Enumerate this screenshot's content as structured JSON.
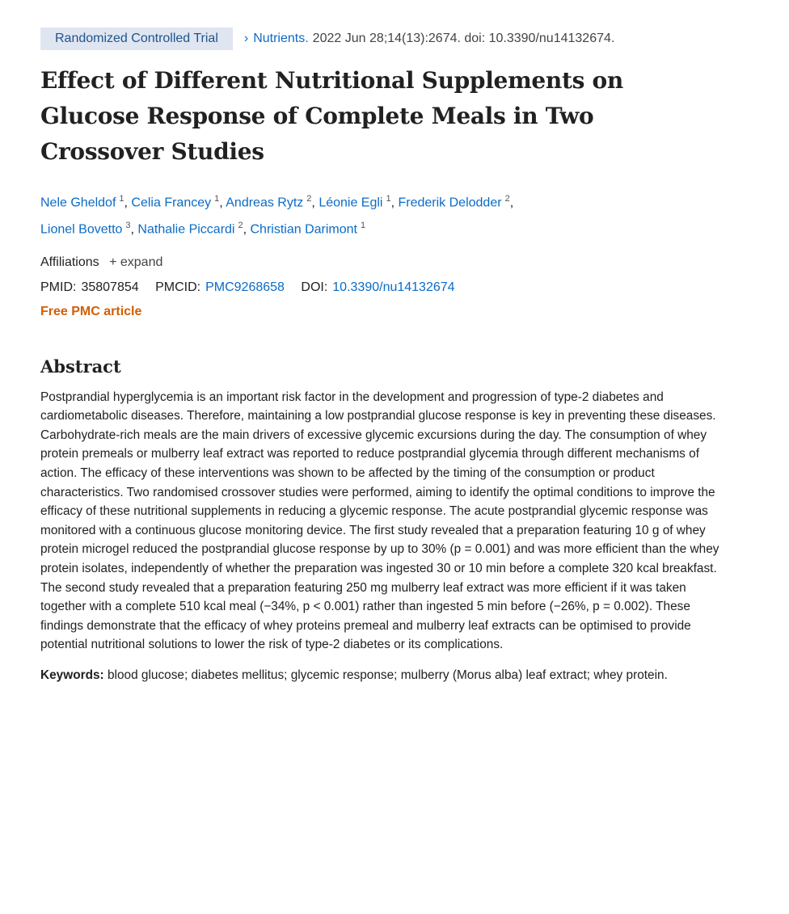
{
  "header": {
    "article_type": "Randomized Controlled Trial",
    "journal": "Nutrients.",
    "citation": "2022 Jun 28;14(13):2674. doi: 10.3390/nu14132674."
  },
  "title": "Effect of Different Nutritional Supplements on Glucose Response of Complete Meals in Two Crossover Studies",
  "authors": [
    {
      "name": "Nele Gheldof",
      "aff": "1"
    },
    {
      "name": "Celia Francey",
      "aff": "1"
    },
    {
      "name": "Andreas Rytz",
      "aff": "2"
    },
    {
      "name": "Léonie Egli",
      "aff": "1"
    },
    {
      "name": "Frederik Delodder",
      "aff": "2"
    },
    {
      "name": "Lionel Bovetto",
      "aff": "3"
    },
    {
      "name": "Nathalie Piccardi",
      "aff": "2"
    },
    {
      "name": "Christian Darimont",
      "aff": "1"
    }
  ],
  "affiliations": {
    "label": "Affiliations",
    "expand": "+ expand"
  },
  "ids": {
    "pmid_label": "PMID:",
    "pmid": "35807854",
    "pmcid_label": "PMCID:",
    "pmcid": "PMC9268658",
    "doi_label": "DOI:",
    "doi": "10.3390/nu14132674"
  },
  "free_pmc": "Free PMC article",
  "abstract": {
    "heading": "Abstract",
    "text": "Postprandial hyperglycemia is an important risk factor in the development and progression of type-2 diabetes and cardiometabolic diseases. Therefore, maintaining a low postprandial glucose response is key in preventing these diseases. Carbohydrate-rich meals are the main drivers of excessive glycemic excursions during the day. The consumption of whey protein premeals or mulberry leaf extract was reported to reduce postprandial glycemia through different mechanisms of action. The efficacy of these interventions was shown to be affected by the timing of the consumption or product characteristics. Two randomised crossover studies were performed, aiming to identify the optimal conditions to improve the efficacy of these nutritional supplements in reducing a glycemic response. The acute postprandial glycemic response was monitored with a continuous glucose monitoring device. The first study revealed that a preparation featuring 10 g of whey protein microgel reduced the postprandial glucose response by up to 30% (p = 0.001) and was more efficient than the whey protein isolates, independently of whether the preparation was ingested 30 or 10 min before a complete 320 kcal breakfast. The second study revealed that a preparation featuring 250 mg mulberry leaf extract was more efficient if it was taken together with a complete 510 kcal meal (−34%, p < 0.001) rather than ingested 5 min before (−26%, p = 0.002). These findings demonstrate that the efficacy of whey proteins premeal and mulberry leaf extracts can be optimised to provide potential nutritional solutions to lower the risk of type-2 diabetes or its complications."
  },
  "keywords": {
    "label": "Keywords:",
    "text": "blood glucose; diabetes mellitus; glycemic response; mulberry (Morus alba) leaf extract; whey protein."
  },
  "colors": {
    "link": "#0b6bc6",
    "badge_bg": "#dfe5f1",
    "free_pmc": "#d25e06"
  }
}
